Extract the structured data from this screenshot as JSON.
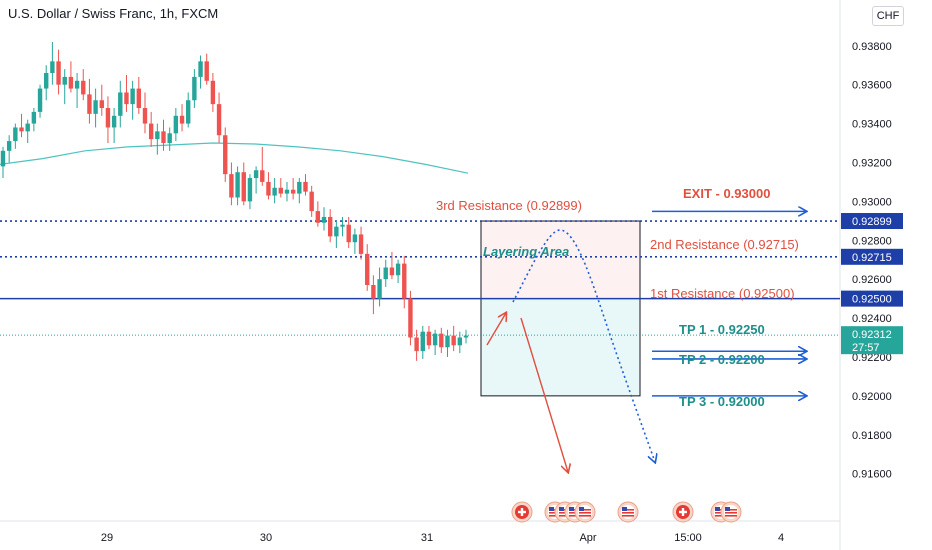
{
  "header": {
    "title": "U.S. Dollar / Swiss Franc, 1h, FXCM",
    "currency": "CHF"
  },
  "colors": {
    "up": "#26a69a",
    "down": "#ef5350",
    "ma": "#4fc3c0",
    "resistance_blue": "#1e3fa8",
    "annotation_red": "#e04f3f",
    "tp_teal": "#1e8f8a",
    "price_badge": "#26a69a"
  },
  "current_price": {
    "value": "0.92312",
    "countdown": "27:57"
  },
  "chart_data": {
    "type": "candlestick",
    "x_ticks": [
      "29",
      "30",
      "31",
      "Apr",
      "15:00",
      "4"
    ],
    "y_ticks": [
      "0.93800",
      "0.93600",
      "0.93400",
      "0.93200",
      "0.93000",
      "0.92800",
      "0.92600",
      "0.92400",
      "0.92200",
      "0.92000",
      "0.91800",
      "0.91600"
    ],
    "ylim": [
      0.9148,
      0.9384
    ],
    "grid": false,
    "levels": [
      {
        "price": 0.92899,
        "label": "3rd Resistance (0.92899)",
        "axis_label": "0.92899",
        "style": "dotted"
      },
      {
        "price": 0.92715,
        "label": "2nd Resistance (0.92715)",
        "axis_label": "0.92715",
        "style": "dotted"
      },
      {
        "price": 0.925,
        "label": "1st Resistance (0.92500)",
        "axis_label": "0.92500",
        "style": "solid"
      }
    ],
    "targets": [
      {
        "label": "EXIT - 0.93000",
        "price": 0.93
      },
      {
        "label": "TP 1 - 0.92250",
        "price": 0.9225
      },
      {
        "label": "TP 2 - 0.92200",
        "price": 0.922
      },
      {
        "label": "TP 3 - 0.92000",
        "price": 0.92
      }
    ],
    "zones": {
      "stop_zone": {
        "from": 0.925,
        "to": 0.92899
      },
      "target_zone": {
        "from": 0.92,
        "to": 0.925
      }
    },
    "annotation": "Layering Area",
    "moving_average": [
      0.9319,
      0.9322,
      0.9326,
      0.9328,
      0.9329,
      0.933,
      0.93295,
      0.9328,
      0.9326,
      0.9323,
      0.9319,
      0.93145
    ],
    "candles": [
      [
        0.9318,
        0.9328,
        0.9312,
        0.9326
      ],
      [
        0.9326,
        0.9334,
        0.932,
        0.9331
      ],
      [
        0.9331,
        0.934,
        0.9327,
        0.9338
      ],
      [
        0.9338,
        0.9345,
        0.9333,
        0.9336
      ],
      [
        0.9336,
        0.9342,
        0.933,
        0.934
      ],
      [
        0.934,
        0.9348,
        0.9336,
        0.9346
      ],
      [
        0.9346,
        0.936,
        0.9343,
        0.9358
      ],
      [
        0.9358,
        0.937,
        0.9352,
        0.9366
      ],
      [
        0.9366,
        0.9382,
        0.936,
        0.9372
      ],
      [
        0.9372,
        0.9378,
        0.9355,
        0.936
      ],
      [
        0.936,
        0.9368,
        0.935,
        0.9364
      ],
      [
        0.9364,
        0.9372,
        0.9356,
        0.9358
      ],
      [
        0.9358,
        0.9366,
        0.9348,
        0.9362
      ],
      [
        0.9362,
        0.9368,
        0.9352,
        0.9355
      ],
      [
        0.9355,
        0.9363,
        0.934,
        0.9345
      ],
      [
        0.9345,
        0.9358,
        0.9338,
        0.9352
      ],
      [
        0.9352,
        0.936,
        0.9344,
        0.9348
      ],
      [
        0.9348,
        0.9354,
        0.933,
        0.9338
      ],
      [
        0.9338,
        0.9348,
        0.933,
        0.9344
      ],
      [
        0.9344,
        0.9362,
        0.9338,
        0.9356
      ],
      [
        0.9356,
        0.9365,
        0.9346,
        0.935
      ],
      [
        0.935,
        0.9362,
        0.9342,
        0.9358
      ],
      [
        0.9358,
        0.9364,
        0.9345,
        0.9348
      ],
      [
        0.9348,
        0.9356,
        0.9335,
        0.934
      ],
      [
        0.934,
        0.9346,
        0.9328,
        0.9332
      ],
      [
        0.9332,
        0.934,
        0.9324,
        0.9336
      ],
      [
        0.9336,
        0.9342,
        0.9326,
        0.933
      ],
      [
        0.933,
        0.9338,
        0.9326,
        0.9335
      ],
      [
        0.9335,
        0.9348,
        0.9331,
        0.9344
      ],
      [
        0.9344,
        0.935,
        0.9336,
        0.934
      ],
      [
        0.934,
        0.9356,
        0.9338,
        0.9352
      ],
      [
        0.9352,
        0.9368,
        0.9348,
        0.9364
      ],
      [
        0.9364,
        0.9375,
        0.9358,
        0.9372
      ],
      [
        0.9372,
        0.9376,
        0.936,
        0.9362
      ],
      [
        0.9362,
        0.9366,
        0.9346,
        0.935
      ],
      [
        0.935,
        0.9356,
        0.933,
        0.9334
      ],
      [
        0.9334,
        0.9338,
        0.931,
        0.9314
      ],
      [
        0.9314,
        0.932,
        0.9298,
        0.9302
      ],
      [
        0.9302,
        0.9318,
        0.9298,
        0.9315
      ],
      [
        0.9315,
        0.932,
        0.9298,
        0.93
      ],
      [
        0.93,
        0.9314,
        0.9296,
        0.9312
      ],
      [
        0.9312,
        0.9318,
        0.9304,
        0.9316
      ],
      [
        0.9316,
        0.9328,
        0.9308,
        0.931
      ],
      [
        0.931,
        0.9315,
        0.9301,
        0.9303
      ],
      [
        0.9303,
        0.9312,
        0.9299,
        0.9307
      ],
      [
        0.9307,
        0.9312,
        0.9302,
        0.9304
      ],
      [
        0.9304,
        0.931,
        0.93,
        0.9306
      ],
      [
        0.9306,
        0.9312,
        0.9301,
        0.9304
      ],
      [
        0.9304,
        0.9312,
        0.9299,
        0.931
      ],
      [
        0.931,
        0.9314,
        0.9303,
        0.9305
      ],
      [
        0.9305,
        0.9308,
        0.9292,
        0.9295
      ],
      [
        0.9295,
        0.93,
        0.9287,
        0.9289
      ],
      [
        0.9289,
        0.9297,
        0.9285,
        0.9292
      ],
      [
        0.9292,
        0.9296,
        0.9279,
        0.9282
      ],
      [
        0.9282,
        0.929,
        0.9276,
        0.9287
      ],
      [
        0.9287,
        0.9292,
        0.9282,
        0.9288
      ],
      [
        0.9288,
        0.9292,
        0.9276,
        0.9279
      ],
      [
        0.9279,
        0.9286,
        0.9273,
        0.9283
      ],
      [
        0.9283,
        0.9287,
        0.927,
        0.9273
      ],
      [
        0.9273,
        0.9278,
        0.9254,
        0.9257
      ],
      [
        0.9257,
        0.9262,
        0.9242,
        0.925
      ],
      [
        0.925,
        0.9266,
        0.9246,
        0.926
      ],
      [
        0.926,
        0.927,
        0.9256,
        0.9266
      ],
      [
        0.9266,
        0.9274,
        0.926,
        0.9262
      ],
      [
        0.9262,
        0.927,
        0.9258,
        0.9268
      ],
      [
        0.9268,
        0.9272,
        0.9245,
        0.925
      ],
      [
        0.925,
        0.9254,
        0.9226,
        0.923
      ],
      [
        0.923,
        0.9234,
        0.9218,
        0.9223
      ],
      [
        0.9223,
        0.9236,
        0.9219,
        0.9233
      ],
      [
        0.9233,
        0.9236,
        0.9224,
        0.9226
      ],
      [
        0.9226,
        0.9234,
        0.9221,
        0.9232
      ],
      [
        0.9232,
        0.9235,
        0.9222,
        0.9225
      ],
      [
        0.9225,
        0.9234,
        0.922,
        0.9231
      ],
      [
        0.9231,
        0.9236,
        0.9223,
        0.9226
      ],
      [
        0.9226,
        0.9233,
        0.9222,
        0.923
      ],
      [
        0.923,
        0.9234,
        0.9227,
        0.9231
      ]
    ]
  }
}
